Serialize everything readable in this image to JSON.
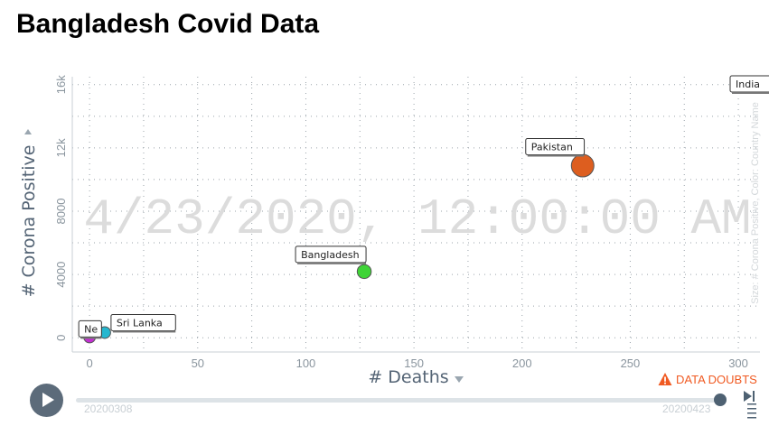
{
  "page": {
    "title": "Bangladesh Covid Data"
  },
  "chart_data": {
    "type": "scatter",
    "date_watermark": "4/23/2020, 12:00:00 AM",
    "xlabel": "# Deaths",
    "ylabel": "# Corona Positive",
    "size_color_caption": "Size: # Corona Positive, Color: Country Name",
    "xlim": [
      -8,
      310
    ],
    "ylim": [
      -900,
      16500
    ],
    "x_ticks": [
      0,
      50,
      100,
      150,
      200,
      250,
      300
    ],
    "y_ticks": [
      {
        "value": 0,
        "label": "0"
      },
      {
        "value": 4000,
        "label": "4000"
      },
      {
        "value": 8000,
        "label": "8000"
      },
      {
        "value": 12000,
        "label": "12k"
      },
      {
        "value": 16000,
        "label": "16k"
      }
    ],
    "points": [
      {
        "name": "Nepal",
        "label": "Ne",
        "x": 0,
        "y": 48,
        "color": "#c42fd3"
      },
      {
        "name": "Sri Lanka",
        "label": "Sri Lanka",
        "x": 7,
        "y": 330,
        "color": "#25b7cf"
      },
      {
        "name": "Bangladesh",
        "label": "Bangladesh",
        "x": 127,
        "y": 4186,
        "color": "#3fd437"
      },
      {
        "name": "Pakistan",
        "label": "Pakistan",
        "x": 228,
        "y": 10880,
        "color": "#dd5e1f"
      },
      {
        "name": "India",
        "label": "India",
        "x": null,
        "y": null,
        "color": "#f08c2a"
      }
    ],
    "grid": true
  },
  "timeline": {
    "start_label": "20200308",
    "end_label": "20200423",
    "position": 1.0
  },
  "data_doubts_label": "DATA DOUBTS",
  "icons": {
    "play": "play-icon",
    "forward": "forward-icon",
    "menu": "menu-icon",
    "warning": "warning-icon"
  },
  "colors": {
    "doubts": "#f05a22",
    "axis_label": "#546475",
    "track": "#dde3e7",
    "handle": "#4e6172"
  }
}
